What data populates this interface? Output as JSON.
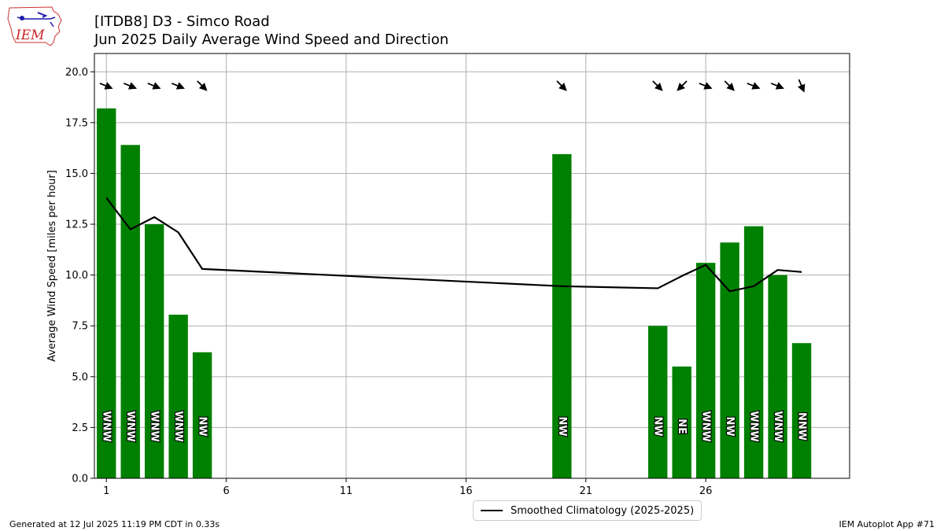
{
  "title_line1": "[ITDB8] D3 - Simco Road",
  "title_line2": "Jun 2025 Daily Average Wind Speed and Direction",
  "footer_left": "Generated at 12 Jul 2025 11:19 PM CDT in 0.33s",
  "footer_right": "IEM Autoplot App #71",
  "logo": {
    "icon": "iem-iowa-logo",
    "text": "IEM",
    "color": "#cc2222"
  },
  "chart_data": {
    "type": "bar",
    "title": "[ITDB8] D3 - Simco Road\nJun 2025 Daily Average Wind Speed and Direction",
    "xlabel": "",
    "ylabel": "Average Wind Speed [miles per hour]",
    "xlim": [
      0.5,
      32
    ],
    "ylim": [
      0,
      20.9
    ],
    "xticks": [
      1,
      6,
      11,
      16,
      21,
      26
    ],
    "yticks": [
      0.0,
      2.5,
      5.0,
      7.5,
      10.0,
      12.5,
      15.0,
      17.5,
      20.0
    ],
    "grid": true,
    "bar_color": "#008000",
    "days": [
      1,
      2,
      3,
      4,
      5,
      20,
      24,
      25,
      26,
      27,
      28,
      29,
      30
    ],
    "values": [
      18.2,
      16.4,
      12.5,
      8.05,
      6.2,
      15.95,
      7.5,
      5.5,
      10.6,
      11.6,
      12.4,
      10.0,
      6.65
    ],
    "directions": [
      "WNW",
      "WNW",
      "WNW",
      "WNW",
      "NW",
      "NW",
      "NW",
      "NE",
      "WNW",
      "NW",
      "WNW",
      "WNW",
      "NNW"
    ],
    "arrow_angles_deg": [
      292,
      292,
      292,
      292,
      315,
      315,
      315,
      45,
      292,
      315,
      292,
      292,
      337
    ],
    "series": [
      {
        "name": "Smoothed Climatology (2025-2025)",
        "type": "line",
        "color": "#000000",
        "x": [
          1,
          2,
          3,
          4,
          5,
          20,
          24,
          25,
          26,
          27,
          28,
          29,
          30
        ],
        "y": [
          13.8,
          12.25,
          12.85,
          12.1,
          10.3,
          9.45,
          9.35,
          9.95,
          10.5,
          9.2,
          9.45,
          10.25,
          10.15
        ]
      }
    ],
    "legend_position": "below-right"
  }
}
